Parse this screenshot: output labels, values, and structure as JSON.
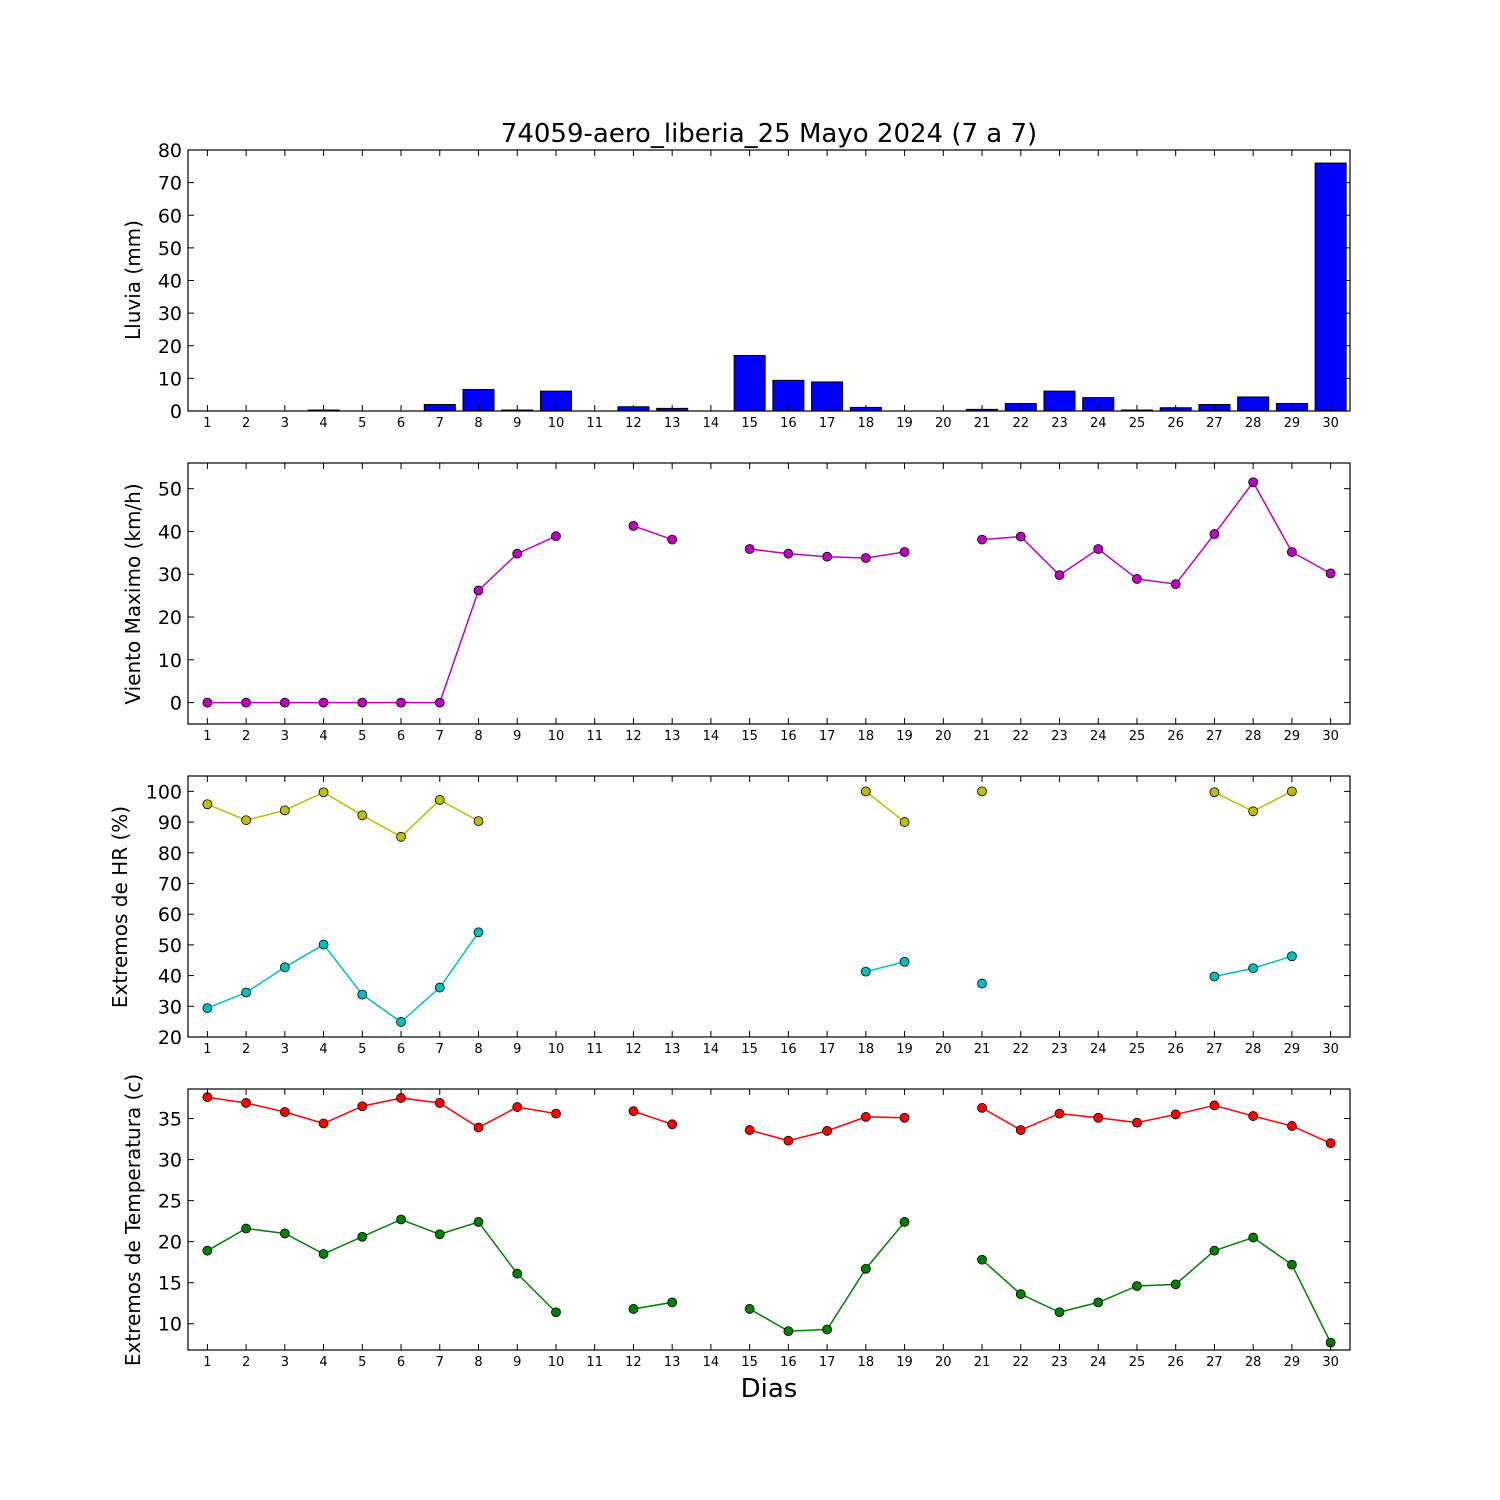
{
  "title": "74059-aero_liberia_25 Mayo 2024  (7 a 7)",
  "xlabel": "Dias",
  "colors": {
    "rain": "#0000ff",
    "wind": "#bf00bf",
    "rh_max": "#bfbf00",
    "rh_min": "#00bfbf",
    "temp_max": "#ff0000",
    "temp_min": "#008000"
  },
  "chart_data": [
    {
      "type": "bar",
      "ylabel": "Lluvia (mm)",
      "ylim": [
        0,
        80
      ],
      "yticks": [
        0,
        10,
        20,
        30,
        40,
        50,
        60,
        70,
        80
      ],
      "categories": [
        "1",
        "2",
        "3",
        "4",
        "5",
        "6",
        "7",
        "8",
        "9",
        "10",
        "11",
        "12",
        "13",
        "14",
        "15",
        "16",
        "17",
        "18",
        "19",
        "20",
        "21",
        "22",
        "23",
        "24",
        "25",
        "26",
        "27",
        "28",
        "29",
        "30"
      ],
      "series": [
        {
          "values": [
            0,
            0,
            0,
            0.3,
            0,
            0,
            2.0,
            6.6,
            0.3,
            6.1,
            0,
            1.3,
            0.8,
            0,
            17.0,
            9.4,
            8.9,
            1.1,
            0,
            0,
            0.5,
            2.3,
            6.1,
            4.1,
            0.3,
            1.0,
            2.0,
            4.3,
            2.3,
            76.0
          ]
        }
      ]
    },
    {
      "type": "line",
      "ylabel": "Viento Maximo (km/h)",
      "ylim": [
        -5,
        56
      ],
      "yticks": [
        0,
        10,
        20,
        30,
        40,
        50
      ],
      "categories": [
        "1",
        "2",
        "3",
        "4",
        "5",
        "6",
        "7",
        "8",
        "9",
        "10",
        "11",
        "12",
        "13",
        "14",
        "15",
        "16",
        "17",
        "18",
        "19",
        "20",
        "21",
        "22",
        "23",
        "24",
        "25",
        "26",
        "27",
        "28",
        "29",
        "30"
      ],
      "series": [
        {
          "values": [
            0,
            0,
            0,
            0,
            0,
            0,
            0,
            26.2,
            34.8,
            38.9,
            null,
            41.3,
            38.1,
            null,
            35.9,
            34.8,
            34.1,
            33.8,
            35.2,
            null,
            38.1,
            38.8,
            29.8,
            35.9,
            28.9,
            27.7,
            39.4,
            51.5,
            35.2,
            30.2
          ]
        }
      ]
    },
    {
      "type": "line",
      "ylabel": "Extremos de HR (%)",
      "ylim": [
        20,
        105
      ],
      "yticks": [
        20,
        30,
        40,
        50,
        60,
        70,
        80,
        90,
        100
      ],
      "categories": [
        "1",
        "2",
        "3",
        "4",
        "5",
        "6",
        "7",
        "8",
        "9",
        "10",
        "11",
        "12",
        "13",
        "14",
        "15",
        "16",
        "17",
        "18",
        "19",
        "20",
        "21",
        "22",
        "23",
        "24",
        "25",
        "26",
        "27",
        "28",
        "29",
        "30"
      ],
      "series": [
        {
          "values": [
            95.8,
            90.6,
            93.8,
            99.7,
            92.2,
            85.2,
            97.2,
            90.3,
            null,
            null,
            null,
            null,
            null,
            null,
            null,
            null,
            null,
            100,
            90.0,
            null,
            100,
            null,
            null,
            null,
            null,
            null,
            99.7,
            93.5,
            100,
            null
          ]
        },
        {
          "values": [
            29.4,
            34.5,
            42.7,
            50.1,
            33.8,
            24.9,
            36.1,
            54.1,
            null,
            null,
            null,
            null,
            null,
            null,
            null,
            null,
            null,
            41.3,
            44.5,
            null,
            37.4,
            null,
            null,
            null,
            null,
            null,
            39.7,
            42.4,
            46.3,
            null
          ]
        }
      ]
    },
    {
      "type": "line",
      "ylabel": "Extremos de Temperatura (c)",
      "ylim": [
        6.8,
        38.6
      ],
      "yticks": [
        10,
        15,
        20,
        25,
        30,
        35
      ],
      "categories": [
        "1",
        "2",
        "3",
        "4",
        "5",
        "6",
        "7",
        "8",
        "9",
        "10",
        "11",
        "12",
        "13",
        "14",
        "15",
        "16",
        "17",
        "18",
        "19",
        "20",
        "21",
        "22",
        "23",
        "24",
        "25",
        "26",
        "27",
        "28",
        "29",
        "30"
      ],
      "series": [
        {
          "values": [
            37.6,
            36.9,
            35.8,
            34.4,
            36.5,
            37.5,
            36.9,
            33.9,
            36.4,
            35.6,
            null,
            35.9,
            34.3,
            null,
            33.6,
            32.3,
            33.5,
            35.2,
            35.1,
            null,
            36.3,
            33.6,
            35.6,
            35.1,
            34.5,
            35.5,
            36.6,
            35.3,
            34.1,
            32.0
          ]
        },
        {
          "values": [
            18.9,
            21.6,
            21.0,
            18.5,
            20.6,
            22.7,
            20.9,
            22.4,
            16.1,
            11.4,
            null,
            11.8,
            12.6,
            null,
            11.8,
            9.1,
            9.3,
            16.7,
            22.4,
            null,
            17.8,
            13.6,
            11.4,
            12.6,
            14.6,
            14.8,
            18.9,
            20.5,
            17.2,
            7.7
          ]
        }
      ]
    }
  ]
}
